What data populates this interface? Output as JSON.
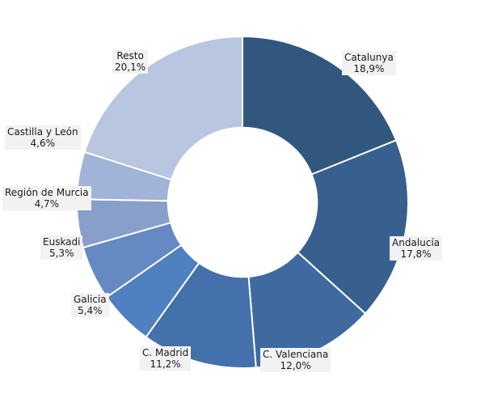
{
  "chart_data": {
    "type": "pie",
    "title": "",
    "categories": [
      "Catalunya",
      "Andalucía",
      "C. Valenciana",
      "C. Madrid",
      "Galicia",
      "Euskadi",
      "Región de Murcia",
      "Castilla y León",
      "Resto"
    ],
    "values": [
      18.9,
      17.8,
      12.0,
      11.2,
      5.4,
      5.3,
      4.7,
      4.6,
      20.1
    ],
    "value_labels": [
      "18,9%",
      "17,8%",
      "12,0%",
      "11,2%",
      "5,4%",
      "5,3%",
      "4,7%",
      "4,6%",
      "20,1%"
    ],
    "colors": [
      "#32577f",
      "#37608f",
      "#3e6aa0",
      "#4470ab",
      "#4f80bf",
      "#6589c3",
      "#889fcb",
      "#a1b3d6",
      "#b8c6e0"
    ],
    "inner_radius_ratio": 0.45,
    "legend": "none"
  }
}
